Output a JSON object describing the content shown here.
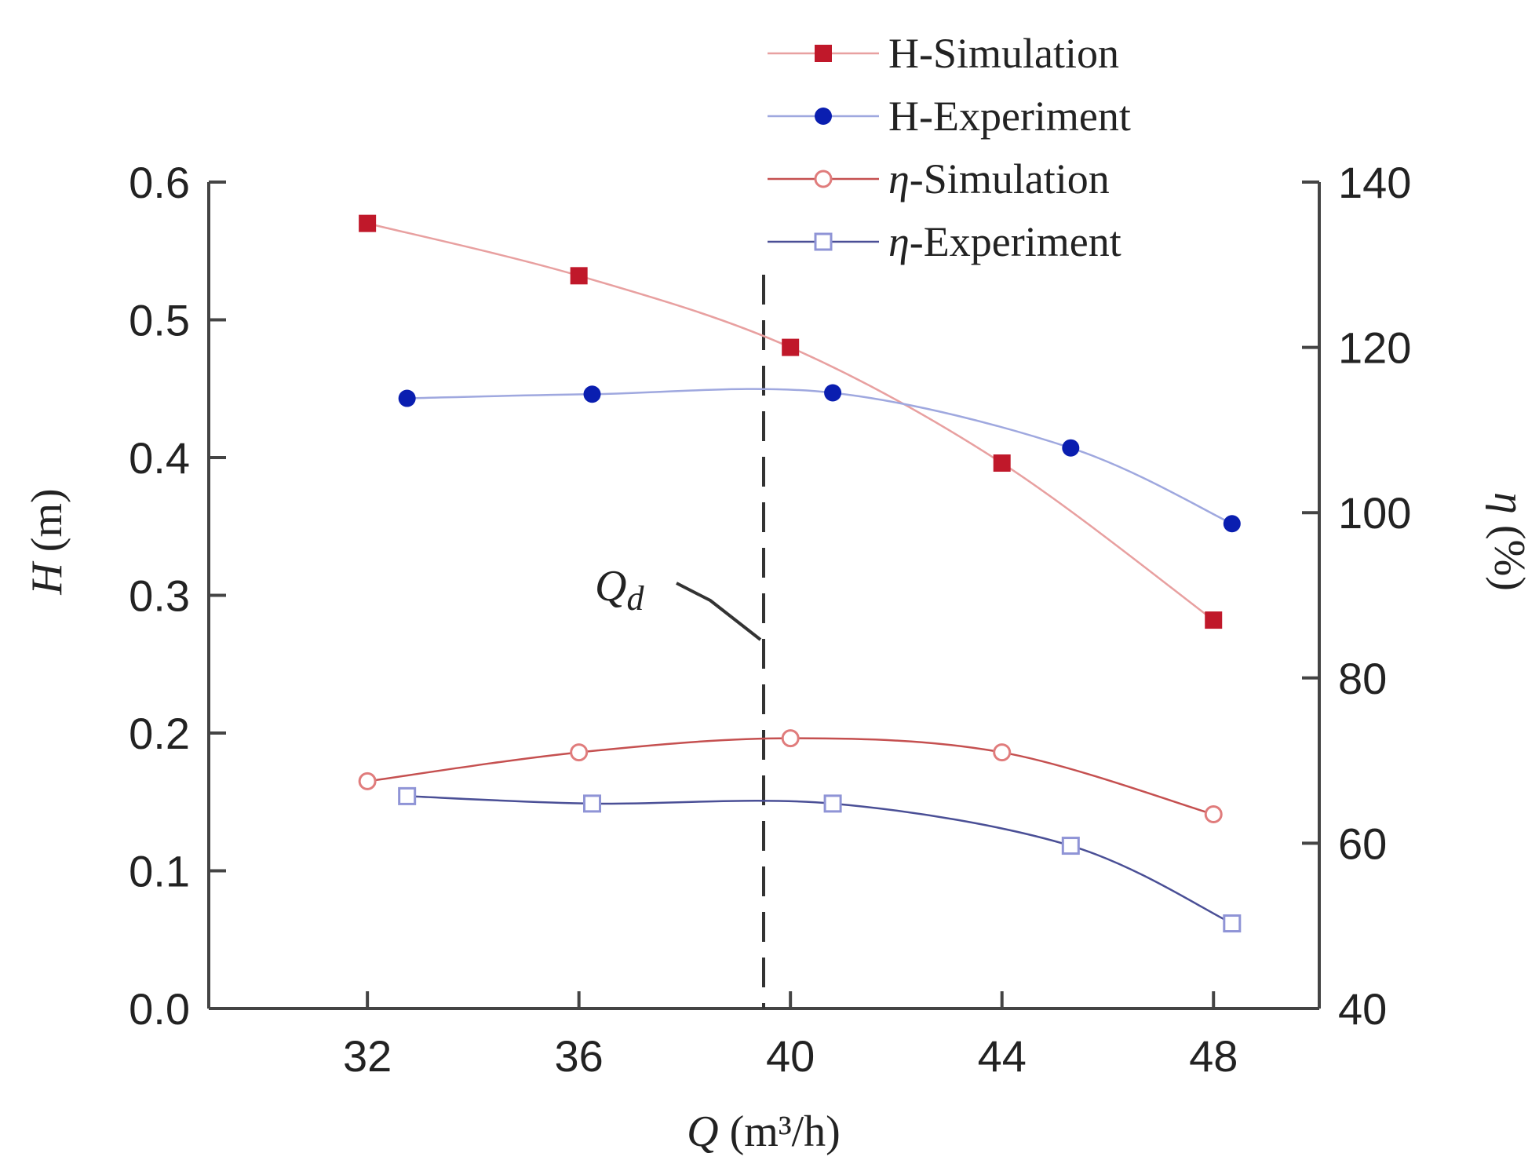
{
  "chart_data": {
    "type": "line",
    "title": "",
    "xlabel": {
      "symbol": "Q",
      "text": " (m³/h)"
    },
    "ylabel_left": {
      "symbol": "H",
      "text": " (m)"
    },
    "ylabel_right": {
      "symbol": "η",
      "text": " (%)"
    },
    "xlim": [
      29,
      50
    ],
    "xticks": [
      32,
      36,
      40,
      44,
      48
    ],
    "ylim_left": [
      0.0,
      0.6
    ],
    "yticks_left": [
      "0.0",
      "0.1",
      "0.2",
      "0.3",
      "0.4",
      "0.5",
      "0.6"
    ],
    "ylim_right": [
      40,
      140
    ],
    "yticks_right": [
      40,
      60,
      80,
      100,
      120,
      140
    ],
    "grid": false,
    "legend_position": "top-right",
    "design_point": {
      "label": "Q",
      "subscript": "d",
      "x": 40
    },
    "series": [
      {
        "name": "H-Simulation",
        "axis": "left",
        "marker": "filled-square",
        "color": "#c0182a",
        "line_color": "#e8a0a0",
        "points": [
          [
            32,
            0.57
          ],
          [
            36,
            0.532
          ],
          [
            40,
            0.48
          ],
          [
            44,
            0.396
          ],
          [
            48,
            0.282
          ]
        ]
      },
      {
        "name": "H-Experiment",
        "axis": "left",
        "marker": "filled-circle",
        "color": "#0a1eb0",
        "line_color": "#9fa8df",
        "points": [
          [
            32.75,
            0.443
          ],
          [
            36.25,
            0.446
          ],
          [
            40.8,
            0.447
          ],
          [
            45.3,
            0.407
          ],
          [
            48.35,
            0.352
          ]
        ]
      },
      {
        "name": "η-Simulation",
        "axis": "right",
        "marker": "open-circle",
        "color": "#e07c7c",
        "line_color": "#c55050",
        "points": [
          [
            32,
            67.5
          ],
          [
            36,
            71.0
          ],
          [
            40,
            72.7
          ],
          [
            44,
            71.0
          ],
          [
            48,
            63.5
          ]
        ]
      },
      {
        "name": "η-Experiment",
        "axis": "right",
        "marker": "open-square",
        "color": "#8f94d6",
        "line_color": "#4a4f96",
        "points": [
          [
            32.75,
            65.7
          ],
          [
            36.25,
            64.8
          ],
          [
            40.8,
            64.8
          ],
          [
            45.3,
            59.7
          ],
          [
            48.35,
            50.3
          ]
        ]
      }
    ]
  }
}
